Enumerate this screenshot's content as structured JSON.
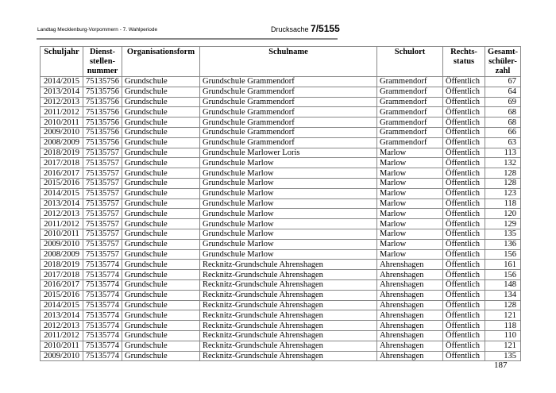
{
  "header": {
    "left": "Landtag Mecklenburg-Vorpommern - 7. Wahlperiode",
    "drucksache_label": "Drucksache",
    "drucksache_number": "7/5155"
  },
  "table": {
    "columns": [
      "Schuljahr",
      "Dienst-\nstellen-\nnummer",
      "Organisationsform",
      "Schulname",
      "Schulort",
      "Rechts-\nstatus",
      "Gesamt-\nschüler-\nzahl"
    ],
    "rows": [
      [
        "2014/2015",
        "75135756",
        "Grundschule",
        "Grundschule Grammendorf",
        "Grammendorf",
        "Öffentlich",
        "67"
      ],
      [
        "2013/2014",
        "75135756",
        "Grundschule",
        "Grundschule Grammendorf",
        "Grammendorf",
        "Öffentlich",
        "64"
      ],
      [
        "2012/2013",
        "75135756",
        "Grundschule",
        "Grundschule Grammendorf",
        "Grammendorf",
        "Öffentlich",
        "69"
      ],
      [
        "2011/2012",
        "75135756",
        "Grundschule",
        "Grundschule Grammendorf",
        "Grammendorf",
        "Öffentlich",
        "68"
      ],
      [
        "2010/2011",
        "75135756",
        "Grundschule",
        "Grundschule Grammendorf",
        "Grammendorf",
        "Öffentlich",
        "68"
      ],
      [
        "2009/2010",
        "75135756",
        "Grundschule",
        "Grundschule Grammendorf",
        "Grammendorf",
        "Öffentlich",
        "66"
      ],
      [
        "2008/2009",
        "75135756",
        "Grundschule",
        "Grundschule Grammendorf",
        "Grammendorf",
        "Öffentlich",
        "63"
      ],
      [
        "2018/2019",
        "75135757",
        "Grundschule",
        "Grundschule Marlower Loris",
        "Marlow",
        "Öffentlich",
        "113"
      ],
      [
        "2017/2018",
        "75135757",
        "Grundschule",
        "Grundschule Marlow",
        "Marlow",
        "Öffentlich",
        "132"
      ],
      [
        "2016/2017",
        "75135757",
        "Grundschule",
        "Grundschule Marlow",
        "Marlow",
        "Öffentlich",
        "128"
      ],
      [
        "2015/2016",
        "75135757",
        "Grundschule",
        "Grundschule Marlow",
        "Marlow",
        "Öffentlich",
        "128"
      ],
      [
        "2014/2015",
        "75135757",
        "Grundschule",
        "Grundschule Marlow",
        "Marlow",
        "Öffentlich",
        "123"
      ],
      [
        "2013/2014",
        "75135757",
        "Grundschule",
        "Grundschule Marlow",
        "Marlow",
        "Öffentlich",
        "118"
      ],
      [
        "2012/2013",
        "75135757",
        "Grundschule",
        "Grundschule Marlow",
        "Marlow",
        "Öffentlich",
        "120"
      ],
      [
        "2011/2012",
        "75135757",
        "Grundschule",
        "Grundschule Marlow",
        "Marlow",
        "Öffentlich",
        "129"
      ],
      [
        "2010/2011",
        "75135757",
        "Grundschule",
        "Grundschule Marlow",
        "Marlow",
        "Öffentlich",
        "135"
      ],
      [
        "2009/2010",
        "75135757",
        "Grundschule",
        "Grundschule Marlow",
        "Marlow",
        "Öffentlich",
        "136"
      ],
      [
        "2008/2009",
        "75135757",
        "Grundschule",
        "Grundschule Marlow",
        "Marlow",
        "Öffentlich",
        "156"
      ],
      [
        "2018/2019",
        "75135774",
        "Grundschule",
        "Recknitz-Grundschule Ahrenshagen",
        "Ahrenshagen",
        "Öffentlich",
        "161"
      ],
      [
        "2017/2018",
        "75135774",
        "Grundschule",
        "Recknitz-Grundschule Ahrenshagen",
        "Ahrenshagen",
        "Öffentlich",
        "156"
      ],
      [
        "2016/2017",
        "75135774",
        "Grundschule",
        "Recknitz-Grundschule Ahrenshagen",
        "Ahrenshagen",
        "Öffentlich",
        "148"
      ],
      [
        "2015/2016",
        "75135774",
        "Grundschule",
        "Recknitz-Grundschule Ahrenshagen",
        "Ahrenshagen",
        "Öffentlich",
        "134"
      ],
      [
        "2014/2015",
        "75135774",
        "Grundschule",
        "Recknitz-Grundschule Ahrenshagen",
        "Ahrenshagen",
        "Öffentlich",
        "128"
      ],
      [
        "2013/2014",
        "75135774",
        "Grundschule",
        "Recknitz-Grundschule Ahrenshagen",
        "Ahrenshagen",
        "Öffentlich",
        "121"
      ],
      [
        "2012/2013",
        "75135774",
        "Grundschule",
        "Recknitz-Grundschule Ahrenshagen",
        "Ahrenshagen",
        "Öffentlich",
        "118"
      ],
      [
        "2011/2012",
        "75135774",
        "Grundschule",
        "Recknitz-Grundschule Ahrenshagen",
        "Ahrenshagen",
        "Öffentlich",
        "110"
      ],
      [
        "2010/2011",
        "75135774",
        "Grundschule",
        "Recknitz-Grundschule Ahrenshagen",
        "Ahrenshagen",
        "Öffentlich",
        "121"
      ],
      [
        "2009/2010",
        "75135774",
        "Grundschule",
        "Recknitz-Grundschule Ahrenshagen",
        "Ahrenshagen",
        "Öffentlich",
        "135"
      ]
    ]
  },
  "footer": {
    "page_number": "187"
  }
}
